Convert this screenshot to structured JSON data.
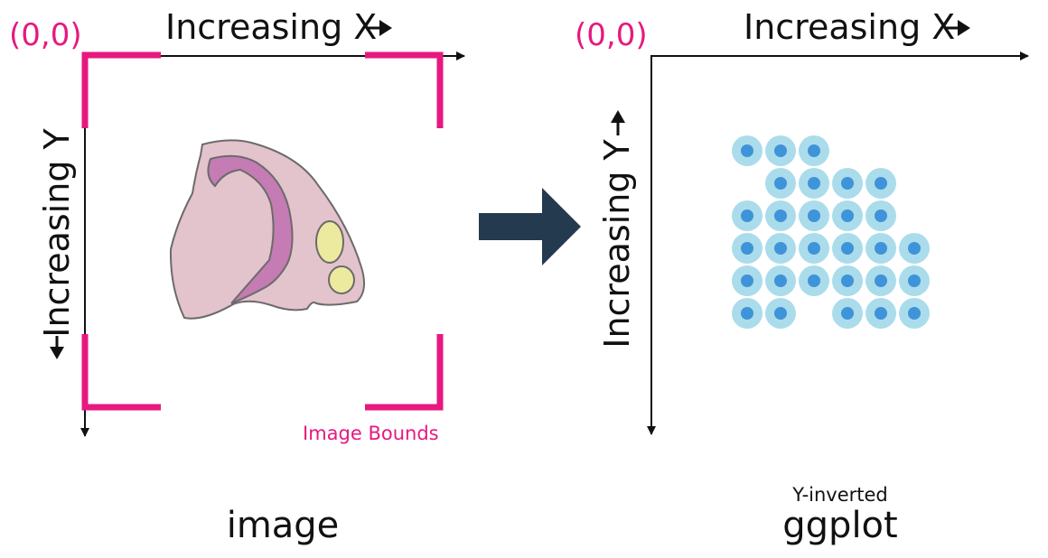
{
  "left_panel": {
    "origin_label": "(0,0)",
    "x_axis_label": "Increasing X",
    "y_axis_label": "Increasing Y",
    "bounds_label": "Image Bounds",
    "caption": "image",
    "tissue_icon": "tissue-section-icon"
  },
  "transition": {
    "arrow_icon": "right-arrow-icon"
  },
  "right_panel": {
    "origin_label": "(0,0)",
    "x_axis_label": "Increasing X",
    "y_axis_label": "Increasing Y",
    "subcaption": "Y-inverted",
    "caption": "ggplot",
    "spot_grid": [
      [
        1,
        1,
        1,
        0,
        0,
        0
      ],
      [
        0,
        1,
        1,
        1,
        1,
        0
      ],
      [
        1,
        1,
        1,
        1,
        1,
        0
      ],
      [
        1,
        1,
        1,
        1,
        1,
        1
      ],
      [
        1,
        1,
        1,
        1,
        1,
        1
      ],
      [
        1,
        1,
        0,
        1,
        1,
        1
      ]
    ]
  },
  "colors": {
    "accent_pink": "#e6197f",
    "axis": "#111111",
    "arrow_dark": "#243a4f",
    "tissue_fill": "#e3c3cc",
    "tissue_band": "#c57bb3",
    "tissue_spot": "#ecea9e",
    "spot_outer": "#abdceb",
    "spot_inner": "#3f93d9"
  }
}
